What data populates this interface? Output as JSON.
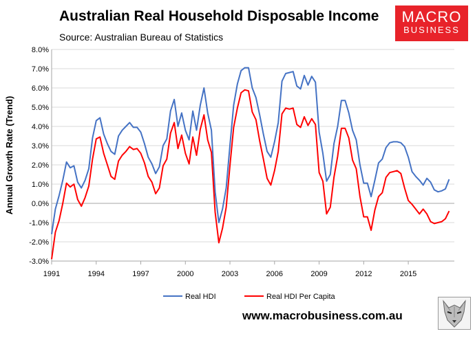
{
  "header": {
    "title": "Australian Real Household Disposable Income",
    "source": "Source: Australian Bureau of Statistics"
  },
  "logo": {
    "line1": "MACRO",
    "line2": "BUSINESS",
    "color": "#e8232a"
  },
  "footer": {
    "website": "www.macrobusiness.com.au",
    "wolf_icon": "wolf-head-icon"
  },
  "chart_data": {
    "type": "line",
    "title": "",
    "xlabel": "",
    "ylabel": "Annual Growth Rate (Trend)",
    "ylim": [
      -3.0,
      8.0
    ],
    "y_ticks": [
      "-3.0%",
      "-2.0%",
      "-1.0%",
      "0.0%",
      "1.0%",
      "2.0%",
      "3.0%",
      "4.0%",
      "5.0%",
      "6.0%",
      "7.0%",
      "8.0%"
    ],
    "y_tick_values": [
      -3,
      -2,
      -1,
      0,
      1,
      2,
      3,
      4,
      5,
      6,
      7,
      8
    ],
    "x_ticks": [
      "1991",
      "1994",
      "1997",
      "2000",
      "2003",
      "2006",
      "2009",
      "2012",
      "2015"
    ],
    "xlim": [
      1991,
      2018.1
    ],
    "grid": true,
    "legend_position": "bottom",
    "series": [
      {
        "name": "Real HDI",
        "color": "#4472c4",
        "x": [
          1991.0,
          1991.25,
          1991.5,
          1991.75,
          1992.0,
          1992.25,
          1992.5,
          1992.75,
          1993.0,
          1993.25,
          1993.5,
          1993.75,
          1994.0,
          1994.25,
          1994.5,
          1994.75,
          1995.0,
          1995.25,
          1995.5,
          1995.75,
          1996.0,
          1996.25,
          1996.5,
          1996.75,
          1997.0,
          1997.25,
          1997.5,
          1997.75,
          1998.0,
          1998.25,
          1998.5,
          1998.75,
          1999.0,
          1999.25,
          1999.5,
          1999.75,
          2000.0,
          2000.25,
          2000.5,
          2000.75,
          2001.0,
          2001.25,
          2001.5,
          2001.75,
          2002.0,
          2002.25,
          2002.5,
          2002.75,
          2003.0,
          2003.25,
          2003.5,
          2003.75,
          2004.0,
          2004.25,
          2004.5,
          2004.75,
          2005.0,
          2005.25,
          2005.5,
          2005.75,
          2006.0,
          2006.25,
          2006.5,
          2006.75,
          2007.0,
          2007.25,
          2007.5,
          2007.75,
          2008.0,
          2008.25,
          2008.5,
          2008.75,
          2009.0,
          2009.25,
          2009.5,
          2009.75,
          2010.0,
          2010.25,
          2010.5,
          2010.75,
          2011.0,
          2011.25,
          2011.5,
          2011.75,
          2012.0,
          2012.25,
          2012.5,
          2012.75,
          2013.0,
          2013.25,
          2013.5,
          2013.75,
          2014.0,
          2014.25,
          2014.5,
          2014.75,
          2015.0,
          2015.25,
          2015.5,
          2015.75,
          2016.0,
          2016.25,
          2016.5,
          2016.75,
          2017.0,
          2017.25,
          2017.5,
          2017.75
        ],
        "values": [
          -1.6,
          -0.3,
          0.4,
          1.2,
          2.15,
          1.85,
          1.95,
          1.1,
          0.8,
          1.2,
          1.8,
          3.4,
          4.3,
          4.45,
          3.6,
          3.1,
          2.7,
          2.55,
          3.5,
          3.8,
          4.0,
          4.2,
          3.95,
          3.95,
          3.7,
          3.1,
          2.4,
          2.05,
          1.55,
          1.9,
          3.0,
          3.35,
          4.8,
          5.4,
          4.0,
          4.7,
          3.8,
          3.3,
          4.8,
          3.8,
          5.1,
          6.0,
          4.7,
          3.8,
          0.6,
          -1.0,
          -0.3,
          0.8,
          3.0,
          5.1,
          6.2,
          6.9,
          7.05,
          7.05,
          6.0,
          5.5,
          4.6,
          3.6,
          2.7,
          2.4,
          3.2,
          4.2,
          6.35,
          6.75,
          6.8,
          6.85,
          6.1,
          5.95,
          6.65,
          6.15,
          6.6,
          6.3,
          3.7,
          2.6,
          1.15,
          1.5,
          3.1,
          4.0,
          5.35,
          5.35,
          4.7,
          3.8,
          3.3,
          2.0,
          1.05,
          1.05,
          0.35,
          1.2,
          2.1,
          2.3,
          2.9,
          3.15,
          3.2,
          3.2,
          3.15,
          2.95,
          2.4,
          1.65,
          1.4,
          1.2,
          0.95,
          1.3,
          1.1,
          0.7,
          0.6,
          0.65,
          0.75,
          1.25
        ]
      },
      {
        "name": "Real HDI Per Capita",
        "color": "#ff0000",
        "x": [
          1991.0,
          1991.25,
          1991.5,
          1991.75,
          1992.0,
          1992.25,
          1992.5,
          1992.75,
          1993.0,
          1993.25,
          1993.5,
          1993.75,
          1994.0,
          1994.25,
          1994.5,
          1994.75,
          1995.0,
          1995.25,
          1995.5,
          1995.75,
          1996.0,
          1996.25,
          1996.5,
          1996.75,
          1997.0,
          1997.25,
          1997.5,
          1997.75,
          1998.0,
          1998.25,
          1998.5,
          1998.75,
          1999.0,
          1999.25,
          1999.5,
          1999.75,
          2000.0,
          2000.25,
          2000.5,
          2000.75,
          2001.0,
          2001.25,
          2001.5,
          2001.75,
          2002.0,
          2002.25,
          2002.5,
          2002.75,
          2003.0,
          2003.25,
          2003.5,
          2003.75,
          2004.0,
          2004.25,
          2004.5,
          2004.75,
          2005.0,
          2005.25,
          2005.5,
          2005.75,
          2006.0,
          2006.25,
          2006.5,
          2006.75,
          2007.0,
          2007.25,
          2007.5,
          2007.75,
          2008.0,
          2008.25,
          2008.5,
          2008.75,
          2009.0,
          2009.25,
          2009.5,
          2009.75,
          2010.0,
          2010.25,
          2010.5,
          2010.75,
          2011.0,
          2011.25,
          2011.5,
          2011.75,
          2012.0,
          2012.25,
          2012.5,
          2012.75,
          2013.0,
          2013.25,
          2013.5,
          2013.75,
          2014.0,
          2014.25,
          2014.5,
          2014.75,
          2015.0,
          2015.25,
          2015.5,
          2015.75,
          2016.0,
          2016.25,
          2016.5,
          2016.75,
          2017.0,
          2017.25,
          2017.5,
          2017.75
        ],
        "values": [
          -2.9,
          -1.5,
          -0.9,
          0.0,
          1.05,
          0.85,
          1.0,
          0.2,
          -0.15,
          0.3,
          0.9,
          2.3,
          3.35,
          3.45,
          2.6,
          2.0,
          1.4,
          1.25,
          2.2,
          2.5,
          2.7,
          2.95,
          2.8,
          2.85,
          2.6,
          2.1,
          1.4,
          1.1,
          0.5,
          0.8,
          1.95,
          2.3,
          3.65,
          4.2,
          2.85,
          3.55,
          2.6,
          2.05,
          3.45,
          2.5,
          3.85,
          4.6,
          3.3,
          2.65,
          -0.45,
          -2.05,
          -1.3,
          -0.2,
          1.95,
          3.95,
          4.95,
          5.75,
          5.9,
          5.85,
          4.75,
          4.35,
          3.25,
          2.3,
          1.3,
          0.95,
          1.7,
          2.7,
          4.65,
          4.95,
          4.9,
          4.95,
          4.1,
          3.95,
          4.5,
          4.05,
          4.4,
          4.1,
          1.6,
          1.15,
          -0.55,
          -0.2,
          1.35,
          2.45,
          3.9,
          3.9,
          3.4,
          2.25,
          1.8,
          0.35,
          -0.7,
          -0.7,
          -1.4,
          -0.35,
          0.35,
          0.55,
          1.35,
          1.6,
          1.65,
          1.7,
          1.55,
          0.8,
          0.15,
          -0.05,
          -0.3,
          -0.55,
          -0.3,
          -0.55,
          -0.95,
          -1.05,
          -1.0,
          -0.95,
          -0.8,
          -0.4
        ]
      }
    ]
  }
}
